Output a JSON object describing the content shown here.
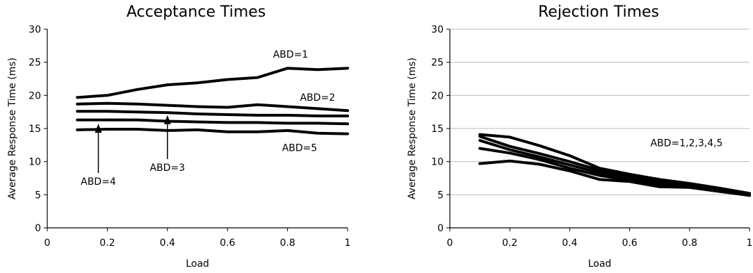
{
  "chart_data": [
    {
      "type": "line",
      "title": "Acceptance Times",
      "xlabel": "Load",
      "ylabel": "Average Response Time (ms)",
      "xlim": [
        0,
        1
      ],
      "ylim": [
        0,
        30
      ],
      "xticks": [
        "0",
        "0.2",
        "0.4",
        "0.6",
        "0.8",
        "1"
      ],
      "yticks": [
        "0",
        "5",
        "10",
        "15",
        "20",
        "25",
        "30"
      ],
      "grid": false,
      "x": [
        0.1,
        0.2,
        0.3,
        0.4,
        0.5,
        0.6,
        0.7,
        0.8,
        0.9,
        1.0
      ],
      "series": [
        {
          "name": "ABD=1",
          "values": [
            19.7,
            20.0,
            20.9,
            21.6,
            21.9,
            22.4,
            22.7,
            24.1,
            23.9,
            24.1
          ]
        },
        {
          "name": "ABD=2",
          "values": [
            18.7,
            18.8,
            18.7,
            18.5,
            18.3,
            18.2,
            18.6,
            18.3,
            18.0,
            17.7
          ]
        },
        {
          "name": "ABD=3",
          "values": [
            17.6,
            17.6,
            17.5,
            17.4,
            17.2,
            17.1,
            17.0,
            17.0,
            16.9,
            16.9
          ]
        },
        {
          "name": "ABD=4",
          "values": [
            16.3,
            16.3,
            16.3,
            16.1,
            16.0,
            15.9,
            15.9,
            15.8,
            15.8,
            15.7
          ]
        },
        {
          "name": "ABD=5",
          "values": [
            14.8,
            14.9,
            14.9,
            14.7,
            14.8,
            14.5,
            14.5,
            14.7,
            14.3,
            14.2
          ]
        }
      ],
      "annotations": [
        {
          "text": "ABD=1",
          "x": 0.81,
          "y": 25.7
        },
        {
          "text": "ABD=2",
          "x": 0.9,
          "y": 19.2
        },
        {
          "text": "ABD=5",
          "x": 0.84,
          "y": 11.6
        },
        {
          "text": "ABD=3",
          "x": 0.4,
          "y": 8.6,
          "arrow_to_x": 0.4,
          "arrow_to_y": 16.7
        },
        {
          "text": "ABD=4",
          "x": 0.17,
          "y": 6.5,
          "arrow_to_x": 0.17,
          "arrow_to_y": 15.4
        }
      ]
    },
    {
      "type": "line",
      "title": "Rejection Times",
      "xlabel": "Load",
      "ylabel": "Average Response Time (ms)",
      "xlim": [
        0,
        1
      ],
      "ylim": [
        0,
        30
      ],
      "xticks": [
        "0",
        "0.2",
        "0.4",
        "0.6",
        "0.8",
        "1"
      ],
      "yticks": [
        "0",
        "5",
        "10",
        "15",
        "20",
        "25",
        "30"
      ],
      "grid": true,
      "x": [
        0.1,
        0.2,
        0.3,
        0.4,
        0.5,
        0.6,
        0.7,
        0.8,
        0.9,
        1.0
      ],
      "series": [
        {
          "name": "",
          "values": [
            14.1,
            13.7,
            12.4,
            10.9,
            9.0,
            8.1,
            7.3,
            6.7,
            6.0,
            5.2
          ]
        },
        {
          "name": "",
          "values": [
            13.8,
            12.3,
            11.2,
            10.0,
            8.7,
            7.8,
            6.9,
            6.4,
            5.8,
            5.0
          ]
        },
        {
          "name": "",
          "values": [
            13.2,
            11.8,
            10.7,
            9.5,
            8.3,
            7.4,
            6.6,
            6.3,
            5.7,
            5.0
          ]
        },
        {
          "name": "",
          "values": [
            12.0,
            11.3,
            10.3,
            9.0,
            7.9,
            7.2,
            6.3,
            6.1,
            5.6,
            4.9
          ]
        },
        {
          "name": "",
          "values": [
            9.7,
            10.1,
            9.6,
            8.6,
            7.3,
            7.0,
            6.2,
            6.1,
            5.5,
            4.9
          ]
        }
      ],
      "annotations": [
        {
          "text": "ABD=1,2,3,4,5",
          "x": 0.79,
          "y": 12.3
        }
      ]
    }
  ]
}
